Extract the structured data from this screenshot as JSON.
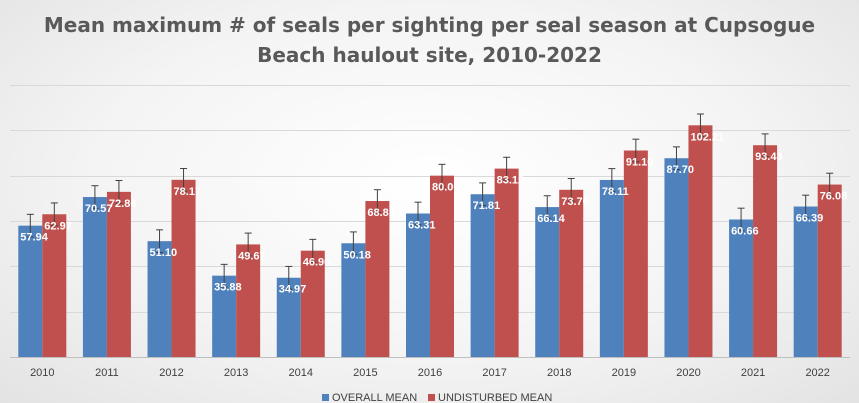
{
  "chart_data": {
    "type": "bar",
    "title": "Mean maximum # of seals per sighting per seal season at Cupsogue Beach haulout site, 2010-2022",
    "title_lines": [
      "Mean maximum # of seals per sighting per seal season at Cupsogue",
      "Beach haulout site, 2010-2022"
    ],
    "xlabel": "",
    "ylabel": "",
    "categories": [
      "2010",
      "2011",
      "2012",
      "2013",
      "2014",
      "2015",
      "2016",
      "2017",
      "2018",
      "2019",
      "2020",
      "2021",
      "2022"
    ],
    "series": [
      {
        "name": "OVERALL MEAN",
        "color": "#4f81bd",
        "values": [
          57.94,
          70.57,
          51.1,
          35.88,
          34.97,
          50.18,
          63.31,
          71.81,
          66.14,
          78.11,
          87.7,
          60.66,
          66.39
        ],
        "labels": [
          "57.94",
          "70.57",
          "51.10",
          "35.88",
          "34.97",
          "50.18",
          "63.31",
          "71.81",
          "66.14",
          "78.11",
          "87.70",
          "60.66",
          "66.39"
        ],
        "error": 5
      },
      {
        "name": "UNDISTURBED MEAN",
        "color": "#c0504d",
        "values": [
          62.97,
          72.86,
          78.17,
          49.67,
          46.9,
          68.81,
          80.0,
          83.12,
          73.76,
          91.1,
          102.21,
          93.43,
          76.08
        ],
        "labels": [
          "62.97",
          "72.86",
          "78.17",
          "49.67",
          "46.90",
          "68.81",
          "80.00",
          "83.12",
          "73.76",
          "91.10",
          "102.21",
          "93.43",
          "76.08"
        ],
        "error": 5
      }
    ],
    "ylim": [
      0,
      120
    ],
    "gridlines": [
      0,
      20,
      40,
      60,
      80,
      100,
      120
    ],
    "grid": true,
    "y_tick_labels_visible": false,
    "legend_position": "bottom",
    "error_bars": true
  }
}
